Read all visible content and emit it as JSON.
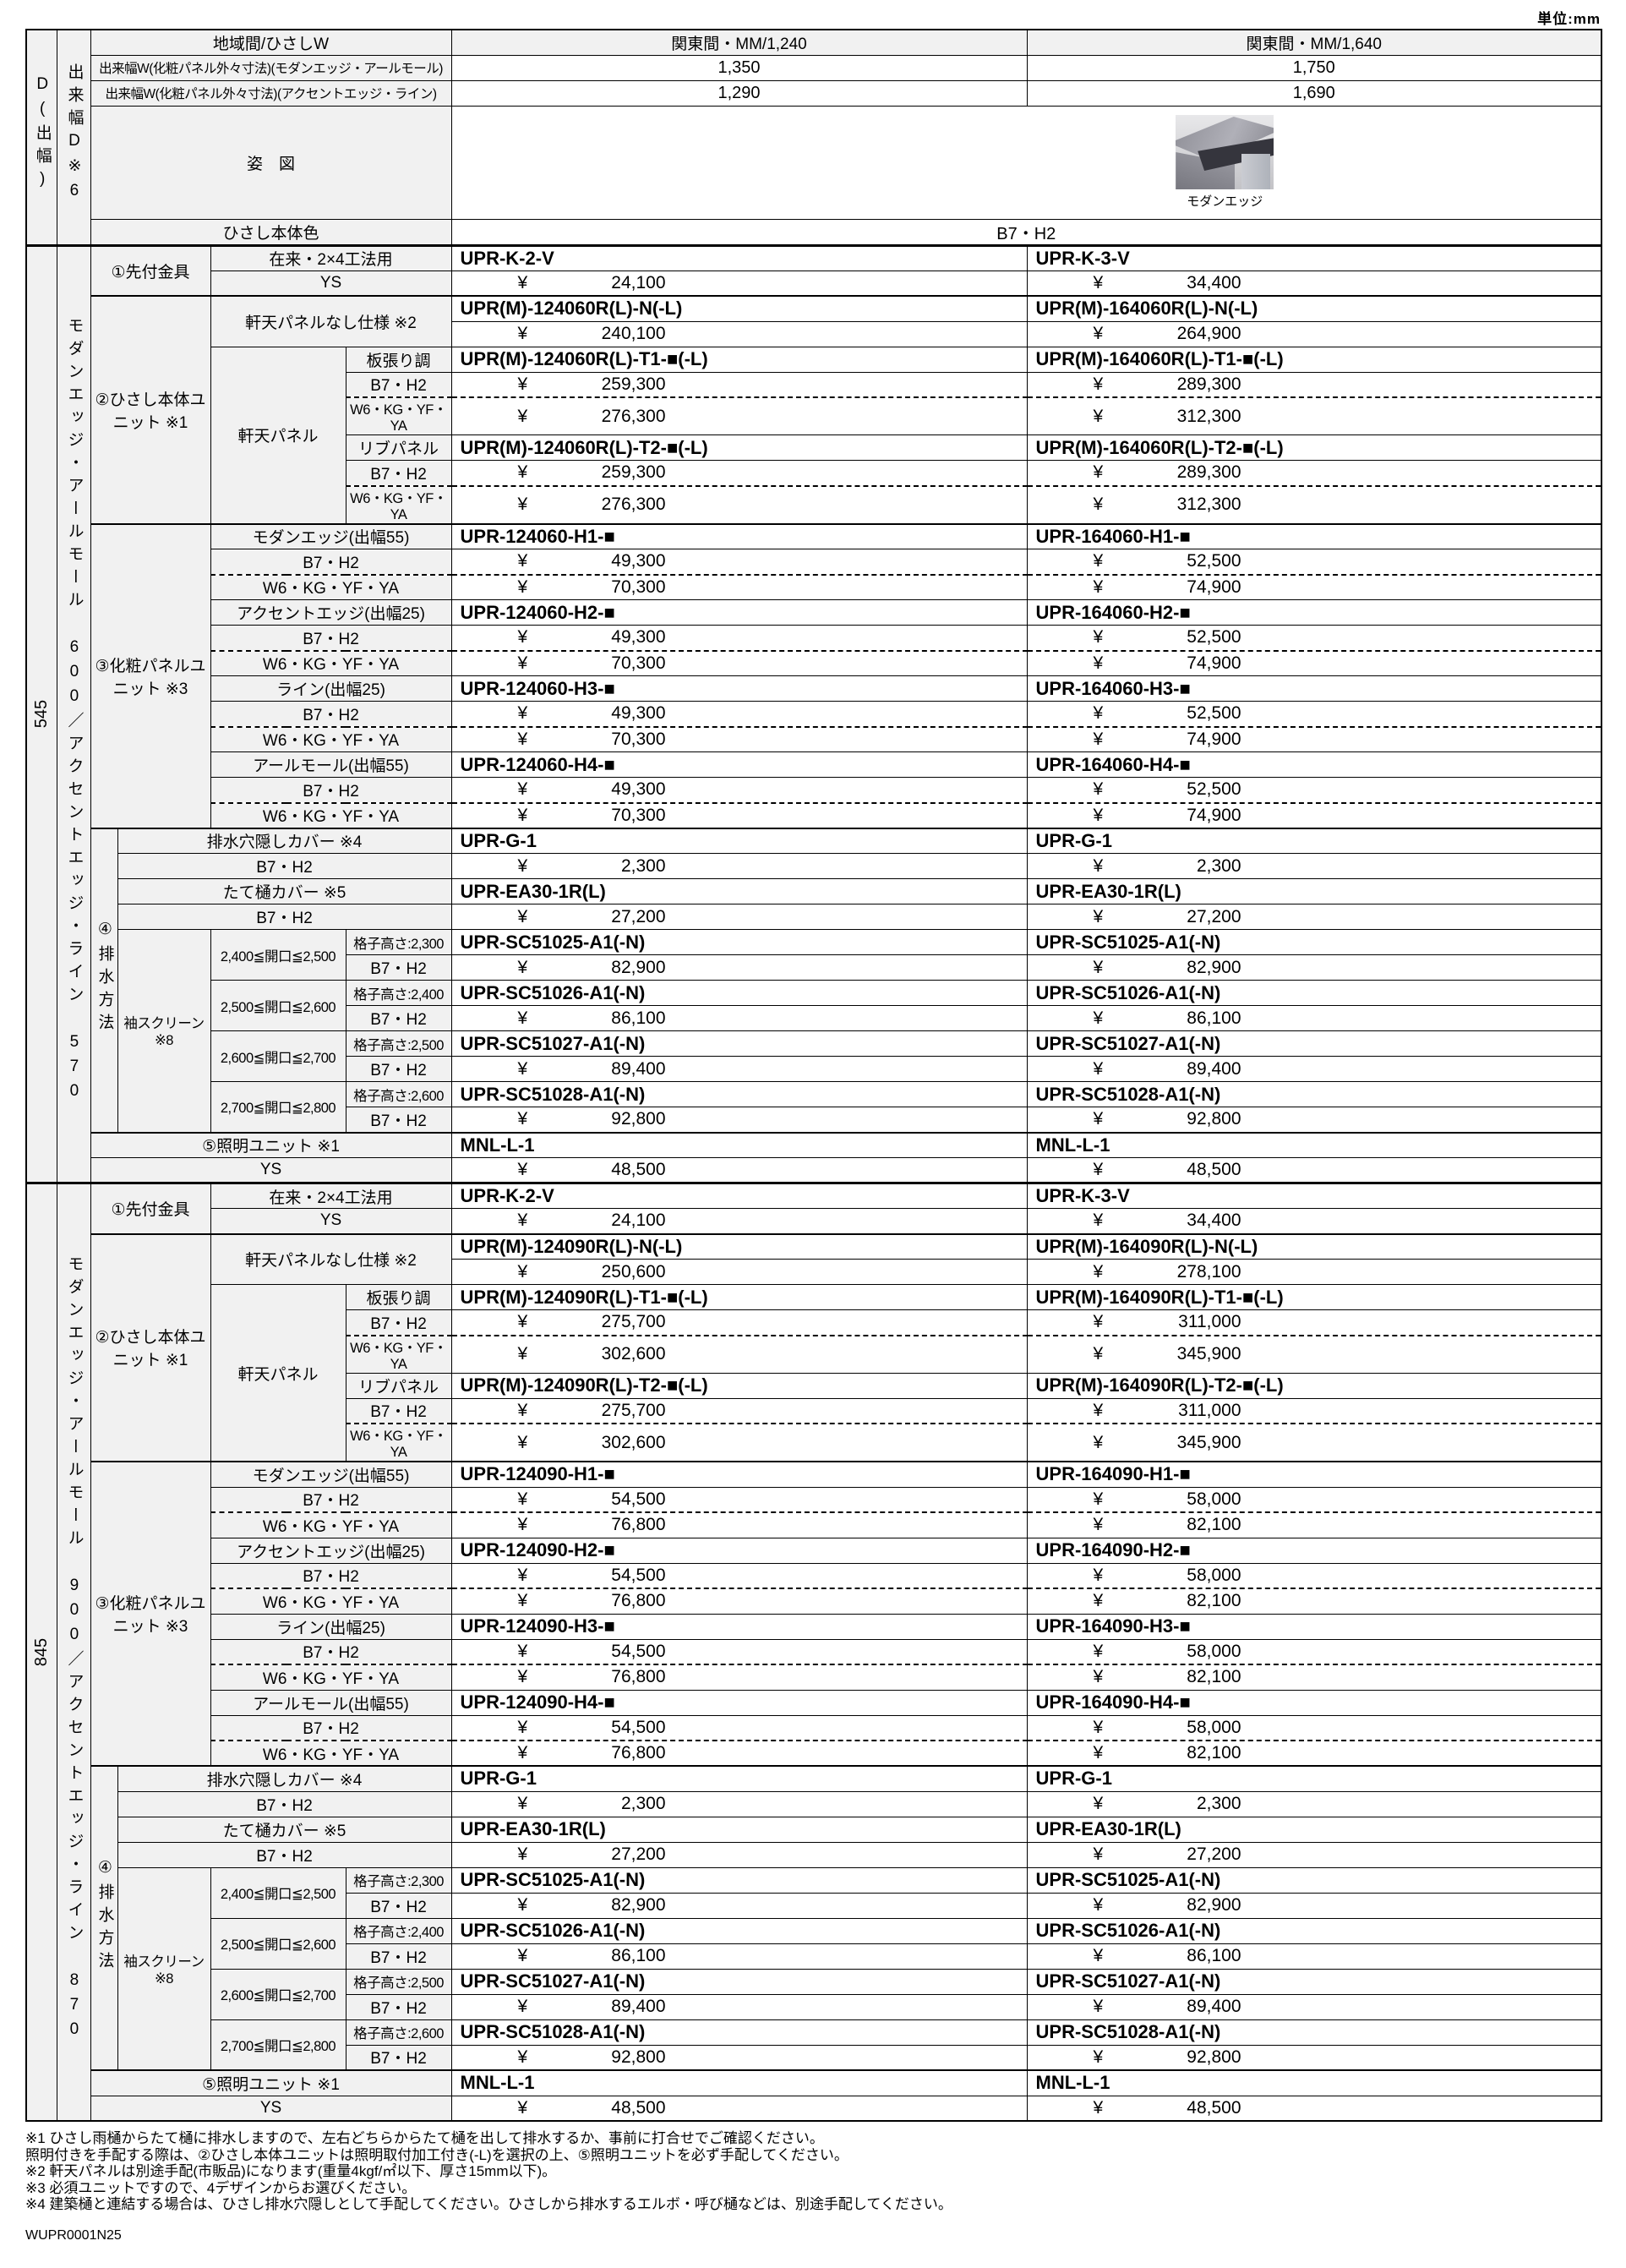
{
  "meta": {
    "unit": "単位:mm",
    "doc_code": "WUPR0001N25"
  },
  "header": {
    "col_a": "D(出幅)",
    "col_b": "出来幅D※6",
    "region": {
      "label": "地域間/ひさしW",
      "v1": "関東間・MM/1,240",
      "v2": "関東間・MM/1,640"
    },
    "width1": {
      "label": "出来幅W(化粧パネル外々寸法)(モダンエッジ・アールモール)",
      "v1": "1,350",
      "v2": "1,750"
    },
    "width2": {
      "label": "出来幅W(化粧パネル外々寸法)(アクセントエッジ・ライン)",
      "v1": "1,290",
      "v2": "1,690"
    },
    "figure_label": "姿　図",
    "figure_caption": "モダンエッジ",
    "body_color": {
      "label": "ひさし本体色",
      "value": "B7・H2"
    }
  },
  "labels": {
    "yen": "¥",
    "sakizuke": "①先付金具",
    "zairai": "在来・2×4工法用",
    "ys": "YS",
    "body_unit": "②ひさし本体ユニット ※1",
    "nashi": "軒天パネルなし仕様 ※2",
    "nokiten": "軒天パネル",
    "itabari": "板張り調",
    "b7": "B7・H2",
    "w6": "W6・KG・YF・YA",
    "ribu": "リブパネル",
    "kesho": "③化粧パネルユニット ※3",
    "panel_types": [
      "モダンエッジ(出幅55)",
      "アクセントエッジ(出幅25)",
      "ライン(出幅25)",
      "アールモール(出幅55)"
    ],
    "haisui": "④排水方法",
    "anakakushi": "排水穴隠しカバー ※4",
    "tatetoi": "たて樋カバー ※5",
    "sode": "袖スクリーン ※8",
    "ranges": [
      "2,400≦開口≦2,500",
      "2,500≦開口≦2,600",
      "2,600≦開口≦2,700",
      "2,700≦開口≦2,800"
    ],
    "koshi": [
      "格子高さ:2,300",
      "格子高さ:2,400",
      "格子高さ:2,500",
      "格子高さ:2,600"
    ],
    "shomei": "⑤照明ユニット ※1"
  },
  "sections": [
    {
      "depth": "545",
      "side": "モダンエッジ・アールモール 600／アクセントエッジ・ライン 570",
      "models": {
        "bracket": [
          "UPR-K-2-V",
          "UPR-K-3-V"
        ],
        "body_n": [
          "UPR(M)-124060R(L)-N(-L)",
          "UPR(M)-164060R(L)-N(-L)"
        ],
        "body_t1": [
          "UPR(M)-124060R(L)-T1-■(-L)",
          "UPR(M)-164060R(L)-T1-■(-L)"
        ],
        "body_t2": [
          "UPR(M)-124060R(L)-T2-■(-L)",
          "UPR(M)-164060R(L)-T2-■(-L)"
        ],
        "panel": [
          [
            "UPR-124060-H1-■",
            "UPR-164060-H1-■"
          ],
          [
            "UPR-124060-H2-■",
            "UPR-164060-H2-■"
          ],
          [
            "UPR-124060-H3-■",
            "UPR-164060-H3-■"
          ],
          [
            "UPR-124060-H4-■",
            "UPR-164060-H4-■"
          ]
        ],
        "drain_cover": [
          "UPR-G-1",
          "UPR-G-1"
        ],
        "pipe_cover": [
          "UPR-EA30-1R(L)",
          "UPR-EA30-1R(L)"
        ],
        "screens": [
          [
            "UPR-SC51025-A1(-N)",
            "UPR-SC51025-A1(-N)"
          ],
          [
            "UPR-SC51026-A1(-N)",
            "UPR-SC51026-A1(-N)"
          ],
          [
            "UPR-SC51027-A1(-N)",
            "UPR-SC51027-A1(-N)"
          ],
          [
            "UPR-SC51028-A1(-N)",
            "UPR-SC51028-A1(-N)"
          ]
        ],
        "light": [
          "MNL-L-1",
          "MNL-L-1"
        ]
      },
      "prices": {
        "bracket": [
          "24,100",
          "34,400"
        ],
        "body_n": [
          "240,100",
          "264,900"
        ],
        "body_t_b7": [
          "259,300",
          "289,300"
        ],
        "body_t_w6": [
          "276,300",
          "312,300"
        ],
        "panel_b7": [
          "49,300",
          "52,500"
        ],
        "panel_w6": [
          "70,300",
          "74,900"
        ],
        "drain_cover": [
          "2,300",
          "2,300"
        ],
        "pipe_cover": [
          "27,200",
          "27,200"
        ],
        "screens": [
          [
            "82,900",
            "82,900"
          ],
          [
            "86,100",
            "86,100"
          ],
          [
            "89,400",
            "89,400"
          ],
          [
            "92,800",
            "92,800"
          ]
        ],
        "light": [
          "48,500",
          "48,500"
        ]
      }
    },
    {
      "depth": "845",
      "side": "モダンエッジ・アールモール 900／アクセントエッジ・ライン 870",
      "models": {
        "bracket": [
          "UPR-K-2-V",
          "UPR-K-3-V"
        ],
        "body_n": [
          "UPR(M)-124090R(L)-N(-L)",
          "UPR(M)-164090R(L)-N(-L)"
        ],
        "body_t1": [
          "UPR(M)-124090R(L)-T1-■(-L)",
          "UPR(M)-164090R(L)-T1-■(-L)"
        ],
        "body_t2": [
          "UPR(M)-124090R(L)-T2-■(-L)",
          "UPR(M)-164090R(L)-T2-■(-L)"
        ],
        "panel": [
          [
            "UPR-124090-H1-■",
            "UPR-164090-H1-■"
          ],
          [
            "UPR-124090-H2-■",
            "UPR-164090-H2-■"
          ],
          [
            "UPR-124090-H3-■",
            "UPR-164090-H3-■"
          ],
          [
            "UPR-124090-H4-■",
            "UPR-164090-H4-■"
          ]
        ],
        "drain_cover": [
          "UPR-G-1",
          "UPR-G-1"
        ],
        "pipe_cover": [
          "UPR-EA30-1R(L)",
          "UPR-EA30-1R(L)"
        ],
        "screens": [
          [
            "UPR-SC51025-A1(-N)",
            "UPR-SC51025-A1(-N)"
          ],
          [
            "UPR-SC51026-A1(-N)",
            "UPR-SC51026-A1(-N)"
          ],
          [
            "UPR-SC51027-A1(-N)",
            "UPR-SC51027-A1(-N)"
          ],
          [
            "UPR-SC51028-A1(-N)",
            "UPR-SC51028-A1(-N)"
          ]
        ],
        "light": [
          "MNL-L-1",
          "MNL-L-1"
        ]
      },
      "prices": {
        "bracket": [
          "24,100",
          "34,400"
        ],
        "body_n": [
          "250,600",
          "278,100"
        ],
        "body_t_b7": [
          "275,700",
          "311,000"
        ],
        "body_t_w6": [
          "302,600",
          "345,900"
        ],
        "panel_b7": [
          "54,500",
          "58,000"
        ],
        "panel_w6": [
          "76,800",
          "82,100"
        ],
        "drain_cover": [
          "2,300",
          "2,300"
        ],
        "pipe_cover": [
          "27,200",
          "27,200"
        ],
        "screens": [
          [
            "82,900",
            "82,900"
          ],
          [
            "86,100",
            "86,100"
          ],
          [
            "89,400",
            "89,400"
          ],
          [
            "92,800",
            "92,800"
          ]
        ],
        "light": [
          "48,500",
          "48,500"
        ]
      }
    }
  ],
  "notes": [
    "※1 ひさし雨樋からたて樋に排水しますので、左右どちらからたて樋を出して排水するか、事前に打合せでご確認ください。",
    "照明付きを手配する際は、②ひさし本体ユニットは照明取付加工付き(-L)を選択の上、⑤照明ユニットを必ず手配してください。",
    "※2 軒天パネルは別途手配(市販品)になります(重量4kgf/㎡以下、厚さ15mm以下)。",
    "※3 必須ユニットですので、4デザインからお選びください。",
    "※4 建築樋と連結する場合は、ひさし排水穴隠しとして手配してください。ひさしから排水するエルボ・呼び樋などは、別途手配してください。"
  ]
}
